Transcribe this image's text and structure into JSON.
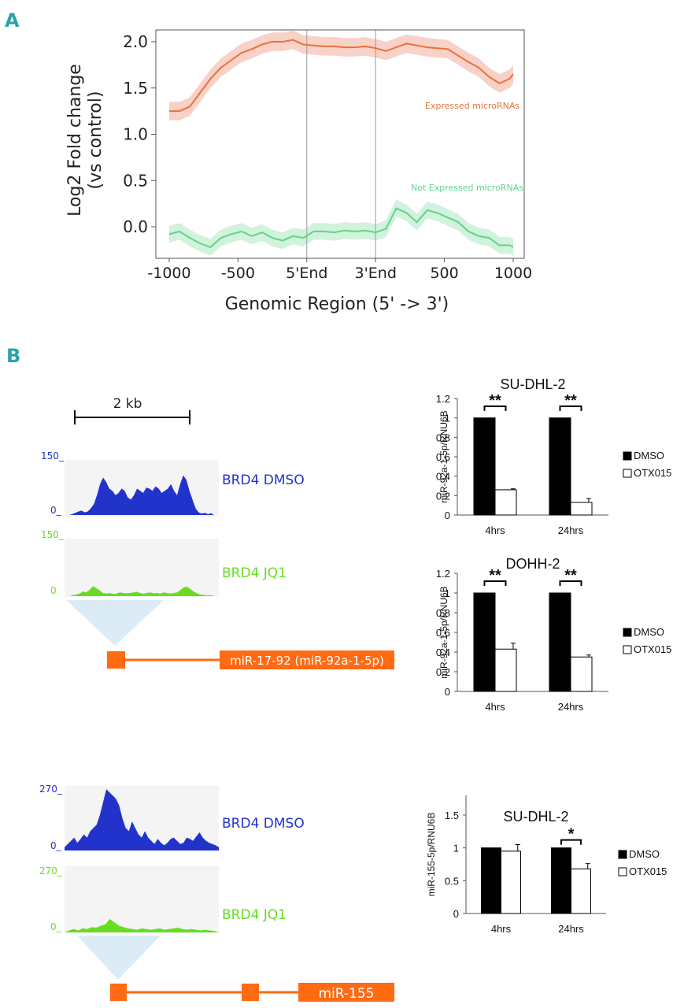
{
  "panel_a": {
    "letter": "A"
  },
  "panel_b": {
    "letter": "B"
  },
  "colors": {
    "expressed": "#e8723c",
    "expressed_band": "#f7c9bd",
    "not_expressed": "#5fd48a",
    "not_expressed_band": "#c9f0d5",
    "brd4_dmso": "#2233cc",
    "brd4_jq1": "#66dd22",
    "gene": "#ff6a13",
    "triangle": "#dcecf6",
    "track_bg": "#f4f4f4"
  },
  "chart_data": [
    {
      "id": "profile",
      "type": "line",
      "ylabel_line1": "Log2 Fold change",
      "ylabel_line2": "(vs control)",
      "xlabel": "Genomic Region (5' -> 3')",
      "x_ticks": [
        "-1000",
        "-500",
        "5'End",
        "3'End",
        "500",
        "1000"
      ],
      "y_ticks": [
        "2.0",
        "1.5",
        "1.0",
        "0.5",
        "0.0"
      ],
      "ylim": [
        -0.3,
        2.1
      ],
      "xlim": [
        0,
        100
      ],
      "vlines": [
        40,
        60
      ],
      "series": [
        {
          "name": "Expressed microRNAs",
          "band": 0.1,
          "x": [
            0,
            3,
            6,
            9,
            12,
            15,
            18,
            21,
            24,
            27,
            30,
            33,
            36,
            39,
            42,
            45,
            48,
            51,
            54,
            57,
            60,
            63,
            66,
            69,
            72,
            75,
            78,
            81,
            84,
            87,
            90,
            93,
            96,
            99,
            100
          ],
          "values": [
            1.25,
            1.25,
            1.3,
            1.45,
            1.6,
            1.72,
            1.8,
            1.88,
            1.92,
            1.97,
            2.0,
            2.0,
            2.02,
            1.97,
            1.96,
            1.95,
            1.95,
            1.94,
            1.94,
            1.95,
            1.93,
            1.9,
            1.94,
            1.98,
            1.96,
            1.94,
            1.93,
            1.92,
            1.85,
            1.78,
            1.72,
            1.62,
            1.55,
            1.6,
            1.65
          ]
        },
        {
          "name": "Not Expressed microRNAs",
          "band": 0.09,
          "x": [
            0,
            3,
            6,
            9,
            12,
            15,
            18,
            21,
            24,
            27,
            30,
            33,
            36,
            39,
            42,
            45,
            48,
            51,
            54,
            57,
            60,
            63,
            66,
            69,
            72,
            75,
            78,
            81,
            84,
            87,
            90,
            93,
            96,
            99,
            100
          ],
          "values": [
            -0.08,
            -0.05,
            -0.12,
            -0.18,
            -0.22,
            -0.12,
            -0.08,
            -0.05,
            -0.1,
            -0.06,
            -0.12,
            -0.15,
            -0.1,
            -0.12,
            -0.05,
            -0.05,
            -0.06,
            -0.04,
            -0.05,
            -0.04,
            -0.06,
            -0.02,
            0.2,
            0.15,
            0.05,
            0.18,
            0.15,
            0.1,
            0.05,
            -0.05,
            -0.1,
            -0.12,
            -0.2,
            -0.2,
            -0.22
          ]
        }
      ]
    },
    {
      "id": "sudhl2_mir92",
      "type": "bar",
      "title": "SU-DHL-2",
      "ylabel": "miR-92a-1-5p/RNU6B",
      "categories": [
        "4hrs",
        "24hrs"
      ],
      "y_ticks": [
        "1.2",
        "1",
        "0.8",
        "0.6",
        "0.4",
        "0.2",
        "0"
      ],
      "ylim": [
        0,
        1.2
      ],
      "series": [
        {
          "name": "DMSO",
          "values": [
            1,
            1
          ],
          "errors": [
            0,
            0
          ]
        },
        {
          "name": "OTX015",
          "values": [
            0.26,
            0.13
          ],
          "errors": [
            0.01,
            0.04
          ]
        }
      ],
      "significance": [
        "**",
        "**"
      ]
    },
    {
      "id": "dohh2_mir92",
      "type": "bar",
      "title": "DOHH-2",
      "ylabel": "miR-92a-1-5p/RNU6B",
      "categories": [
        "4hrs",
        "24hrs"
      ],
      "y_ticks": [
        "1.2",
        "1",
        "0.8",
        "0.6",
        "0.4",
        "0.2",
        "0"
      ],
      "ylim": [
        0,
        1.2
      ],
      "series": [
        {
          "name": "DMSO",
          "values": [
            1,
            1
          ],
          "errors": [
            0,
            0
          ]
        },
        {
          "name": "OTX015",
          "values": [
            0.43,
            0.35
          ],
          "errors": [
            0.06,
            0.02
          ]
        }
      ],
      "significance": [
        "**",
        "**"
      ]
    },
    {
      "id": "sudhl2_mir155",
      "type": "bar",
      "title": "SU-DHL-2",
      "ylabel": "miR-155-5p/RNU6B",
      "categories": [
        "4hrs",
        "24hrs"
      ],
      "y_ticks": [
        "1.5",
        "1",
        "0.5",
        "0"
      ],
      "ylim": [
        0,
        1.8
      ],
      "series": [
        {
          "name": "DMSO",
          "values": [
            1,
            1
          ],
          "errors": [
            0,
            0
          ]
        },
        {
          "name": "OTX015",
          "values": [
            0.95,
            0.68
          ],
          "errors": [
            0.1,
            0.08
          ]
        }
      ],
      "significance": [
        "",
        "*"
      ]
    }
  ],
  "tracks": {
    "scale_label": "2 kb",
    "mir17": {
      "dmso_label": "BRD4 DMSO",
      "dmso_max": "150_",
      "dmso_min": "0_",
      "jq1_label": "BRD4 JQ1",
      "jq1_max": "150_",
      "jq1_min": "0",
      "gene_label": "miR-17-92 (miR-92a-1-5p)",
      "dmso_signal": [
        0,
        0,
        0.02,
        0.05,
        0.08,
        0.1,
        0.06,
        0.08,
        0.15,
        0.25,
        0.45,
        0.7,
        0.85,
        0.75,
        0.6,
        0.55,
        0.45,
        0.5,
        0.6,
        0.55,
        0.4,
        0.35,
        0.45,
        0.6,
        0.55,
        0.5,
        0.62,
        0.6,
        0.55,
        0.65,
        0.6,
        0.5,
        0.55,
        0.6,
        0.7,
        0.55,
        0.45,
        0.7,
        0.9,
        0.8,
        0.55,
        0.35,
        0.15,
        0.06,
        0.03,
        0.05,
        0.02,
        0.04,
        0
      ],
      "jq1_signal": [
        0,
        0,
        0.03,
        0.05,
        0.08,
        0.15,
        0.12,
        0.2,
        0.32,
        0.25,
        0.18,
        0.1,
        0.08,
        0.1,
        0.07,
        0.08,
        0.12,
        0.1,
        0.09,
        0.1,
        0.12,
        0.14,
        0.1,
        0.08,
        0.1,
        0.12,
        0.09,
        0.1,
        0.08,
        0.12,
        0.1,
        0.08,
        0.1,
        0.12,
        0.2,
        0.28,
        0.3,
        0.22,
        0.14,
        0.08,
        0.05,
        0.04,
        0.02,
        0.03,
        0
      ]
    },
    "mir155": {
      "dmso_label": "BRD4 DMSO",
      "dmso_max": "270_",
      "dmso_min": "0_",
      "jq1_label": "BRD4 JQ1",
      "jq1_max": "270_",
      "jq1_min": "0_",
      "gene_label": "miR-155",
      "dmso_signal": [
        0.05,
        0.1,
        0.15,
        0.2,
        0.12,
        0.18,
        0.25,
        0.2,
        0.3,
        0.35,
        0.4,
        0.55,
        0.75,
        0.95,
        0.9,
        0.85,
        0.8,
        0.7,
        0.5,
        0.35,
        0.3,
        0.45,
        0.35,
        0.25,
        0.2,
        0.3,
        0.2,
        0.15,
        0.1,
        0.18,
        0.12,
        0.08,
        0.12,
        0.18,
        0.2,
        0.15,
        0.1,
        0.12,
        0.2,
        0.18,
        0.15,
        0.22,
        0.28,
        0.2,
        0.15,
        0.12,
        0.1,
        0.08,
        0.05
      ],
      "jq1_signal": [
        0,
        0.03,
        0.05,
        0.03,
        0.06,
        0.05,
        0.08,
        0.07,
        0.1,
        0.12,
        0.2,
        0.15,
        0.1,
        0.08,
        0.06,
        0.05,
        0.04,
        0.06,
        0.05,
        0.04,
        0.05,
        0.06,
        0.04,
        0.05,
        0.06,
        0.07,
        0.05,
        0.04,
        0.05,
        0.04,
        0.03,
        0.04,
        0.03,
        0.02,
        0
      ]
    }
  }
}
